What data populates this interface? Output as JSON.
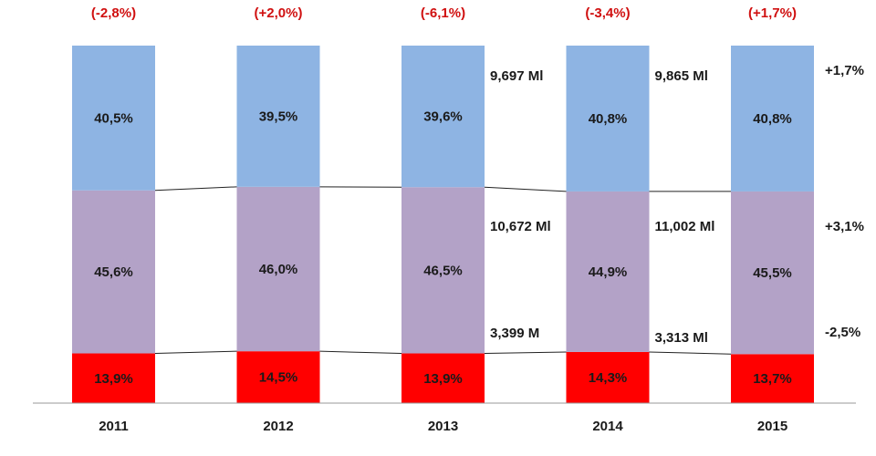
{
  "chart_data": {
    "type": "bar",
    "stacked": true,
    "percent_stacked": true,
    "categories": [
      "2011",
      "2012",
      "2013",
      "2014",
      "2015"
    ],
    "growth_labels": [
      "(-2,8%)",
      "(+2,0%)",
      "(-6,1%)",
      "(-3,4%)",
      "(+1,7%)"
    ],
    "series": [
      {
        "color": "#ff0000",
        "values": [
          13.9,
          14.5,
          13.9,
          14.3,
          13.7
        ],
        "labels": [
          "13,9%",
          "14,5%",
          "13,9%",
          "14,3%",
          "13,7%"
        ]
      },
      {
        "color": "#b3a2c7",
        "values": [
          45.6,
          46.0,
          46.5,
          44.9,
          45.5
        ],
        "labels": [
          "45,6%",
          "46,0%",
          "46,5%",
          "44,9%",
          "45,5%"
        ]
      },
      {
        "color": "#8eb4e3",
        "values": [
          40.5,
          39.5,
          39.6,
          40.8,
          40.8
        ],
        "labels": [
          "40,5%",
          "39,5%",
          "39,6%",
          "40,8%",
          "40,8%"
        ]
      }
    ],
    "value_annotations": [
      {
        "text": "9,697 Ml",
        "after_category": "2013",
        "series": 2
      },
      {
        "text": "10,672 Ml",
        "after_category": "2013",
        "series": 1
      },
      {
        "text": "3,399 M",
        "after_category": "2013",
        "series": 0
      },
      {
        "text": "9,865 Ml",
        "after_category": "2014",
        "series": 2
      },
      {
        "text": "11,002 Ml",
        "after_category": "2014",
        "series": 1
      },
      {
        "text": "3,313 Ml",
        "after_category": "2014",
        "series": 0
      }
    ],
    "right_annotations": [
      {
        "text": "+1,7%",
        "series": 2
      },
      {
        "text": "+3,1%",
        "series": 1
      },
      {
        "text": "-2,5%",
        "series": 0
      }
    ],
    "series_lines": true,
    "ylim": [
      0,
      100
    ],
    "grid": false,
    "legend": "none",
    "title": "",
    "xlabel": "",
    "ylabel": ""
  }
}
